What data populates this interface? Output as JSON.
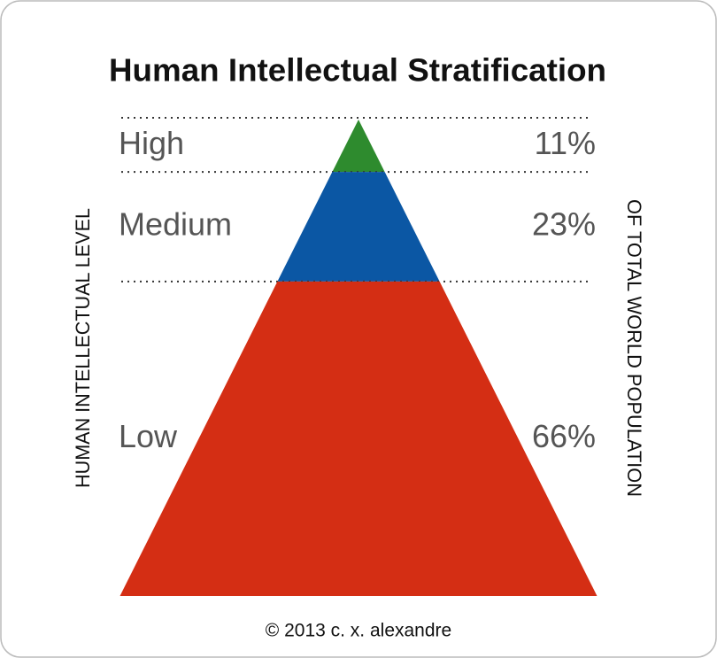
{
  "chart_data": {
    "type": "pyramid",
    "title": "Human Intellectual Stratification",
    "left_label": "HUMAN INTELLECTUAL LEVEL",
    "right_label": "OF TOTAL WORLD POPULATION",
    "footer": "© 2013 c. x. alexandre",
    "categories": [
      "High",
      "Medium",
      "Low"
    ],
    "values": [
      11,
      23,
      66
    ],
    "value_labels": [
      "11%",
      "23%",
      "66%"
    ],
    "colors": [
      "#2e8b2e",
      "#0b57a4",
      "#d42e14"
    ]
  }
}
